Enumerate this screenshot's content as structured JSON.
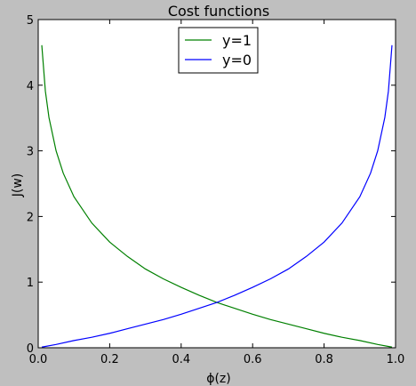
{
  "chart_data": {
    "type": "line",
    "title": "Cost functions",
    "xlabel": "ϕ(z)",
    "ylabel": "J(w)",
    "xlim": [
      0,
      1
    ],
    "ylim": [
      0,
      5
    ],
    "xticks": [
      "0.0",
      "0.2",
      "0.4",
      "0.6",
      "0.8",
      "1.0"
    ],
    "yticks": [
      "0",
      "1",
      "2",
      "3",
      "4",
      "5"
    ],
    "legend_position": "top-center",
    "grid": false,
    "series": [
      {
        "name": "y=1",
        "color": "#008000",
        "x": [
          0.01,
          0.02,
          0.03,
          0.05,
          0.07,
          0.1,
          0.15,
          0.2,
          0.25,
          0.3,
          0.35,
          0.4,
          0.45,
          0.5,
          0.55,
          0.6,
          0.65,
          0.7,
          0.75,
          0.8,
          0.85,
          0.9,
          0.95,
          0.99
        ],
        "y": [
          4.61,
          3.91,
          3.51,
          3.0,
          2.66,
          2.3,
          1.9,
          1.61,
          1.39,
          1.2,
          1.05,
          0.92,
          0.8,
          0.69,
          0.6,
          0.51,
          0.43,
          0.36,
          0.29,
          0.22,
          0.16,
          0.11,
          0.05,
          0.01
        ]
      },
      {
        "name": "y=0",
        "color": "#0000ff",
        "x": [
          0.01,
          0.05,
          0.1,
          0.15,
          0.2,
          0.25,
          0.3,
          0.35,
          0.4,
          0.45,
          0.5,
          0.55,
          0.6,
          0.65,
          0.7,
          0.75,
          0.8,
          0.85,
          0.9,
          0.93,
          0.95,
          0.97,
          0.98,
          0.99
        ],
        "y": [
          0.01,
          0.05,
          0.11,
          0.16,
          0.22,
          0.29,
          0.36,
          0.43,
          0.51,
          0.6,
          0.69,
          0.8,
          0.92,
          1.05,
          1.2,
          1.39,
          1.61,
          1.9,
          2.3,
          2.66,
          3.0,
          3.51,
          3.91,
          4.61
        ]
      }
    ]
  }
}
